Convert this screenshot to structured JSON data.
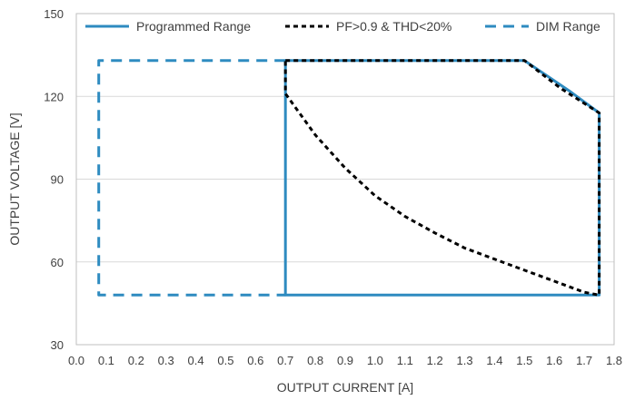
{
  "chart_data": {
    "type": "line",
    "xlabel": "OUTPUT CURRENT [A]",
    "ylabel": "OUTPUT VOLTAGE [V]",
    "xlim": [
      0.0,
      1.8
    ],
    "ylim": [
      30,
      150
    ],
    "x_ticks": [
      "0.0",
      "0.1",
      "0.2",
      "0.3",
      "0.4",
      "0.5",
      "0.6",
      "0.7",
      "0.8",
      "0.9",
      "1.0",
      "1.1",
      "1.2",
      "1.3",
      "1.4",
      "1.5",
      "1.6",
      "1.7",
      "1.8"
    ],
    "y_ticks": [
      "30",
      "60",
      "90",
      "120",
      "150"
    ],
    "grid": "horizontal",
    "legend_position": "top",
    "series": [
      {
        "name": "Programmed Range",
        "style": "solid",
        "color": "#2e8bc0",
        "points": [
          [
            0.7,
            133
          ],
          [
            0.7,
            48
          ],
          [
            1.75,
            48
          ],
          [
            1.75,
            114
          ],
          [
            1.65,
            122
          ],
          [
            1.5,
            133
          ],
          [
            0.7,
            133
          ]
        ]
      },
      {
        "name": "PF>0.9 & THD<20%",
        "style": "dotted",
        "color": "#000000",
        "points": [
          [
            0.7,
            133
          ],
          [
            1.5,
            133
          ],
          [
            1.62,
            123
          ],
          [
            1.75,
            114
          ],
          [
            1.75,
            48
          ],
          [
            1.7,
            49
          ],
          [
            1.6,
            53
          ],
          [
            1.5,
            57
          ],
          [
            1.4,
            61
          ],
          [
            1.3,
            65
          ],
          [
            1.2,
            70.5
          ],
          [
            1.1,
            76.5
          ],
          [
            1.0,
            84
          ],
          [
            0.9,
            94
          ],
          [
            0.8,
            106
          ],
          [
            0.7,
            121
          ],
          [
            0.7,
            133
          ]
        ]
      },
      {
        "name": "DIM Range",
        "style": "dashed",
        "color": "#2e8bc0",
        "points": [
          [
            0.7,
            133
          ],
          [
            0.075,
            133
          ],
          [
            0.075,
            48
          ],
          [
            0.7,
            48
          ]
        ]
      }
    ]
  }
}
